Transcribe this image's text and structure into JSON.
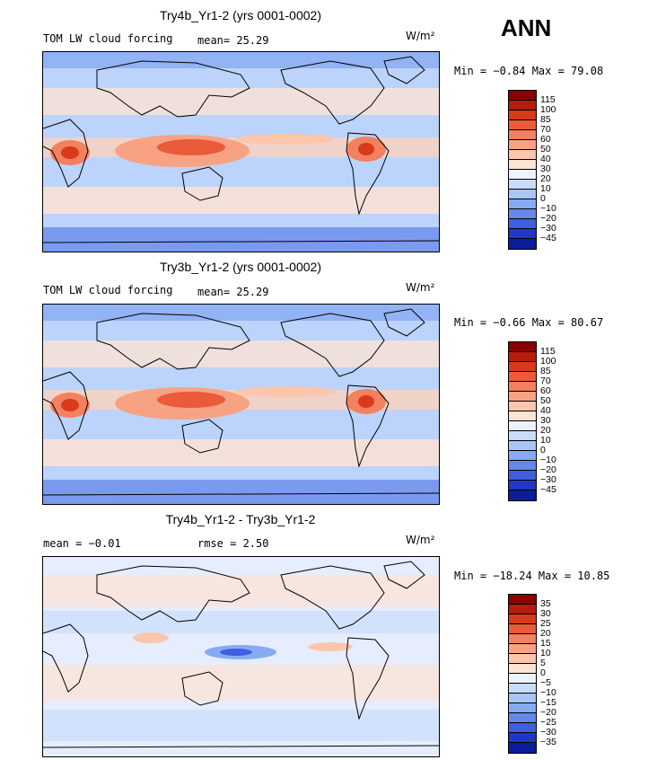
{
  "season": "ANN",
  "panels": [
    {
      "title": "Try4b_Yr1-2 (yrs 0001-0002)",
      "left_text": "TOM LW cloud forcing",
      "mean_text": "mean=  25.29",
      "units": "W/m²",
      "minmax": "Min =  −0.84 Max =  79.08",
      "legend_labels": [
        "115",
        "100",
        "85",
        "70",
        "60",
        "50",
        "40",
        "30",
        "20",
        "10",
        "0",
        "−10",
        "−20",
        "−30",
        "−45"
      ],
      "legend_colors": [
        "#8b0000",
        "#b81c0c",
        "#d83a1c",
        "#eb5a3a",
        "#f3805e",
        "#f7a383",
        "#fbc6ab",
        "#fde3d2",
        "#eef2ff",
        "#c9dcfb",
        "#a9c6f7",
        "#87abf2",
        "#6688ea",
        "#3f5fdf",
        "#2037c6",
        "#0c1d99"
      ]
    },
    {
      "title": "Try3b_Yr1-2 (yrs 0001-0002)",
      "left_text": "TOM LW cloud forcing",
      "mean_text": "mean=  25.29",
      "units": "W/m²",
      "minmax": "Min =  −0.66 Max =  80.67",
      "legend_labels": [
        "115",
        "100",
        "85",
        "70",
        "60",
        "50",
        "40",
        "30",
        "20",
        "10",
        "0",
        "−10",
        "−20",
        "−30",
        "−45"
      ],
      "legend_colors": [
        "#8b0000",
        "#b81c0c",
        "#d83a1c",
        "#eb5a3a",
        "#f3805e",
        "#f7a383",
        "#fbc6ab",
        "#fde3d2",
        "#eef2ff",
        "#c9dcfb",
        "#a9c6f7",
        "#87abf2",
        "#6688ea",
        "#3f5fdf",
        "#2037c6",
        "#0c1d99"
      ]
    },
    {
      "title": "Try4b_Yr1-2 - Try3b_Yr1-2",
      "left_text": "mean =  −0.01",
      "mean_text": "rmse =   2.50",
      "units": "W/m²",
      "minmax": "Min = −18.24 Max =  10.85",
      "legend_labels": [
        "35",
        "30",
        "25",
        "20",
        "15",
        "10",
        "5",
        "0",
        "−5",
        "−10",
        "−15",
        "−20",
        "−25",
        "−30",
        "−35"
      ],
      "legend_colors": [
        "#8b0000",
        "#b81c0c",
        "#d83a1c",
        "#eb5a3a",
        "#f3805e",
        "#f7a383",
        "#fbc6ab",
        "#fde3d2",
        "#eef2ff",
        "#c9dcfb",
        "#a9c6f7",
        "#87abf2",
        "#6688ea",
        "#3f5fdf",
        "#2037c6",
        "#0c1d99"
      ]
    }
  ]
}
